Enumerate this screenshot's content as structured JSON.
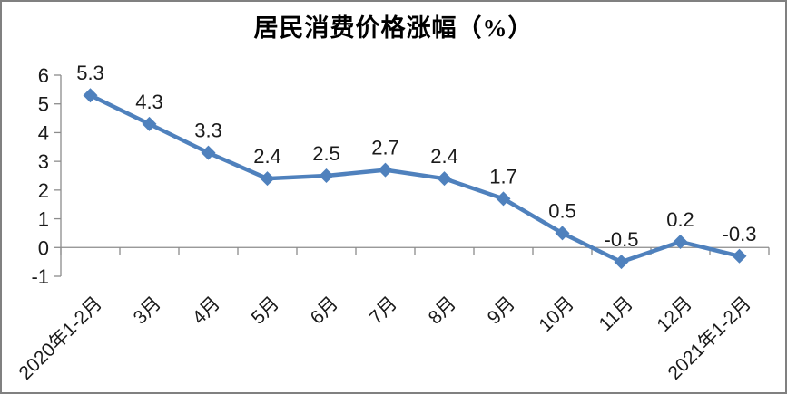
{
  "frame": {
    "background": "#ffffff",
    "border_color": "#808080"
  },
  "chart_data": {
    "type": "line",
    "title": "居民消费价格涨幅（%）",
    "categories": [
      "2020年1-2月",
      "3月",
      "4月",
      "5月",
      "6月",
      "7月",
      "8月",
      "9月",
      "10月",
      "11月",
      "12月",
      "2021年1-2月"
    ],
    "values": [
      5.3,
      4.3,
      3.3,
      2.4,
      2.5,
      2.7,
      2.4,
      1.7,
      0.5,
      -0.5,
      0.2,
      -0.3
    ],
    "data_labels": [
      "5.3",
      "4.3",
      "3.3",
      "2.4",
      "2.5",
      "2.7",
      "2.4",
      "1.7",
      "0.5",
      "-0.5",
      "0.2",
      "-0.3"
    ],
    "xlabel": "",
    "ylabel": "",
    "ylim": [
      -1,
      6
    ],
    "yticks": [
      6,
      5,
      4,
      3,
      2,
      1,
      0,
      -1
    ],
    "grid": false,
    "legend": "none",
    "line_color": "#4F81BD",
    "marker": "diamond",
    "axis_color": "#8C8C8C",
    "label_color": "#1a1a1a"
  }
}
